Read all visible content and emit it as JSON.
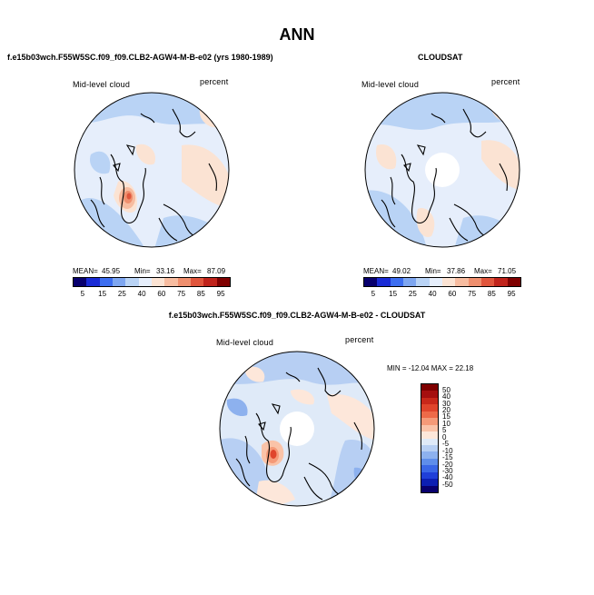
{
  "page": {
    "title": "ANN"
  },
  "panels": {
    "model": {
      "title": "f.e15b03wch.F55W5SC.f09_f09.CLB2-AGW4-M-B-e02 (yrs 1980-1989)",
      "variable": "Mid-level cloud",
      "units": "percent",
      "mean_label": "MEAN=",
      "mean_value": "45.95",
      "min_label": "Min=",
      "min_value": "33.16",
      "max_label": "Max=",
      "max_value": "87.09"
    },
    "obs": {
      "title": "CLOUDSAT",
      "variable": "Mid-level cloud",
      "units": "percent",
      "mean_label": "MEAN=",
      "mean_value": "49.02",
      "min_label": "Min=",
      "min_value": "37.86",
      "max_label": "Max=",
      "max_value": "71.05"
    },
    "diff": {
      "title": "f.e15b03wch.F55W5SC.f09_f09.CLB2-AGW4-M-B-e02 - CLOUDSAT",
      "variable": "Mid-level cloud",
      "units": "percent",
      "minmax_text": "MIN = -12.04  MAX =  22.18"
    }
  },
  "colorbar_abs": {
    "labels": [
      "5",
      "15",
      "25",
      "40",
      "60",
      "75",
      "85",
      "95"
    ],
    "colors": [
      "#08006e",
      "#1a2bd6",
      "#3d6ef0",
      "#7ea6f0",
      "#b9d3f5",
      "#e6eefb",
      "#fbe3d3",
      "#f7bca0",
      "#ef8f6e",
      "#e0553c",
      "#c0231b",
      "#7f0000"
    ]
  },
  "colorbar_diff": {
    "labels": [
      "50",
      "40",
      "30",
      "20",
      "15",
      "10",
      "5",
      "0",
      "-5",
      "-10",
      "-15",
      "-20",
      "-30",
      "-40",
      "-50"
    ],
    "colors": [
      "#7f0000",
      "#a50f0f",
      "#c8281a",
      "#e0452c",
      "#ee6a48",
      "#f59a78",
      "#fac3a8",
      "#fde7da",
      "#dfeaf8",
      "#b7cff3",
      "#8db1ee",
      "#5f8eea",
      "#3a67e6",
      "#1f3fd8",
      "#0c1fb3",
      "#08006e"
    ]
  }
}
